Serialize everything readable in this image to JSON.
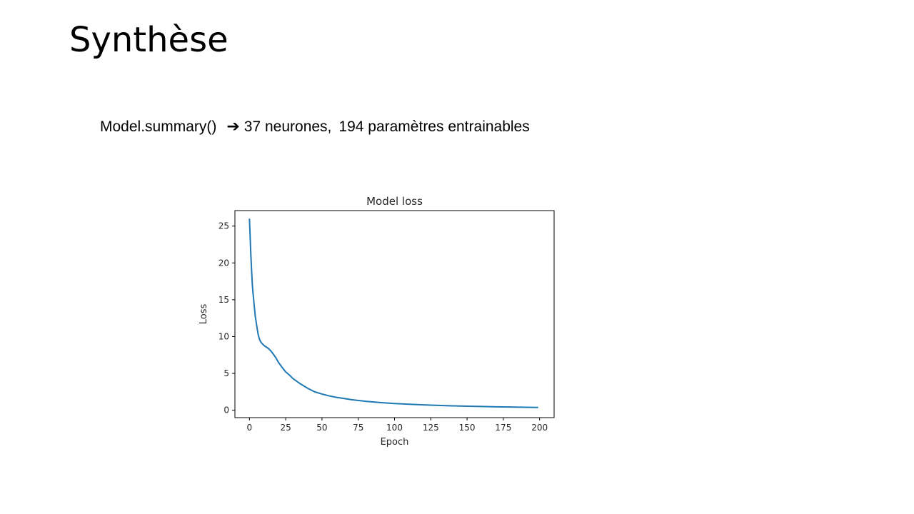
{
  "slide": {
    "title": "Synthèse",
    "summary": {
      "call": "Model.summary()",
      "arrow": "➔",
      "neurons": "37 neurones,",
      "params": "194 paramètres entrainables"
    }
  },
  "chart_data": {
    "type": "line",
    "title": "Model loss",
    "xlabel": "Epoch",
    "ylabel": "Loss",
    "xlim": [
      -10,
      210
    ],
    "ylim": [
      -1,
      27.1
    ],
    "xticks": [
      0,
      25,
      50,
      75,
      100,
      125,
      150,
      175,
      200
    ],
    "yticks": [
      0,
      5,
      10,
      15,
      20,
      25
    ],
    "grid": false,
    "series": [
      {
        "color": "#1f77b4",
        "x": [
          0,
          1,
          2,
          3,
          4,
          5,
          6,
          7,
          8,
          10,
          13,
          15,
          18,
          20,
          23,
          25,
          28,
          30,
          35,
          40,
          45,
          50,
          55,
          60,
          65,
          70,
          75,
          80,
          90,
          100,
          110,
          120,
          130,
          140,
          150,
          160,
          170,
          180,
          190,
          199
        ],
        "y": [
          26.0,
          21.0,
          17.0,
          14.8,
          12.8,
          11.5,
          10.3,
          9.6,
          9.2,
          8.8,
          8.4,
          8.0,
          7.2,
          6.5,
          5.7,
          5.2,
          4.7,
          4.3,
          3.6,
          3.0,
          2.5,
          2.2,
          1.95,
          1.75,
          1.6,
          1.45,
          1.33,
          1.22,
          1.05,
          0.92,
          0.82,
          0.73,
          0.66,
          0.6,
          0.55,
          0.51,
          0.47,
          0.44,
          0.41,
          0.38
        ]
      }
    ]
  }
}
